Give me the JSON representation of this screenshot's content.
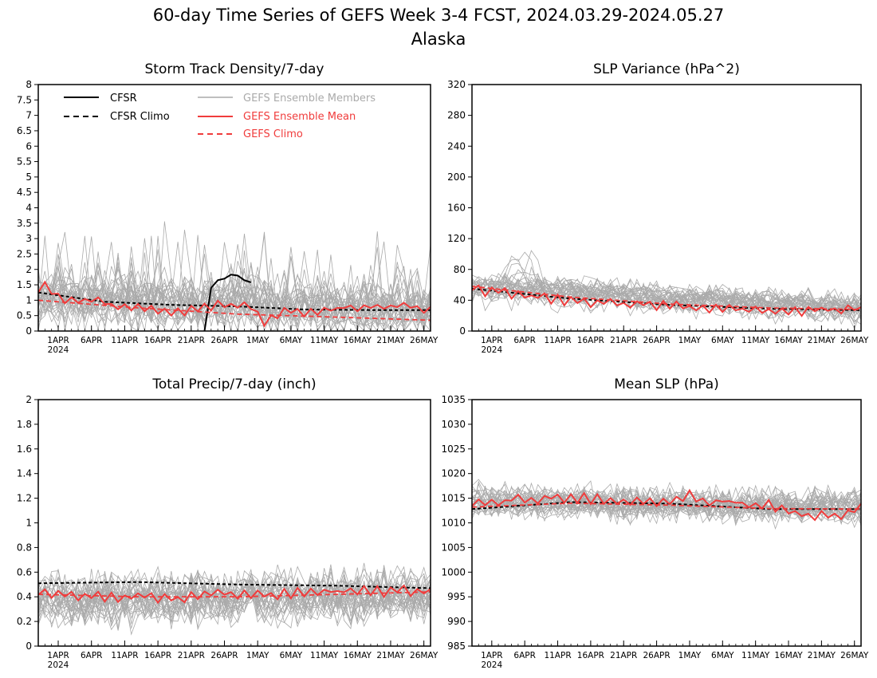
{
  "title": "60-day Time Series of GEFS Week 3-4 FCST, 2024.03.29-2024.05.27",
  "subtitle": "Alaska",
  "colors": {
    "cfsr": "#000000",
    "members": "#aaaaaa",
    "ens_mean": "#f03c3c",
    "gefs_climo": "#f03c3c"
  },
  "legend": {
    "cfsr": "CFSR",
    "cfsr_climo": "CFSR Climo",
    "members": "GEFS Ensemble Members",
    "ens_mean": "GEFS Ensemble Mean",
    "gefs_climo": "GEFS Climo"
  },
  "x_axis": {
    "start": "2024-03-29",
    "end": "2024-05-27",
    "tick_labels": [
      "1APR",
      "6APR",
      "11APR",
      "16APR",
      "21APR",
      "26APR",
      "1MAY",
      "6MAY",
      "11MAY",
      "16MAY",
      "21MAY",
      "26MAY"
    ],
    "year_label": "2024"
  },
  "chart_data": [
    {
      "type": "line",
      "title": "Storm Track Density/7-day",
      "ylim": [
        0,
        8
      ],
      "yticks": [
        0,
        0.5,
        1,
        1.5,
        2,
        2.5,
        3,
        3.5,
        4,
        4.5,
        5,
        5.5,
        6,
        6.5,
        7,
        7.5,
        8
      ],
      "ytick_labels": [
        "0",
        "0.5",
        "1",
        "1.5",
        "2",
        "2.5",
        "3",
        "3.5",
        "4",
        "4.5",
        "5",
        "5.5",
        "6",
        "6.5",
        "7",
        "7.5",
        "8"
      ],
      "members": {
        "count": 31,
        "mean_start": 1.1,
        "mean_end": 0.7,
        "spread": 0.9
      },
      "series": [
        {
          "name": "CFSR",
          "x": [
            "2024-04-23",
            "2024-04-24",
            "2024-04-25",
            "2024-04-26",
            "2024-04-27",
            "2024-04-28",
            "2024-04-29",
            "2024-04-30"
          ],
          "values": [
            0.0,
            1.4,
            1.65,
            1.7,
            1.83,
            1.8,
            1.65,
            1.58
          ]
        },
        {
          "name": "CFSR Climo",
          "x": [
            "2024-03-29",
            "2024-04-08",
            "2024-04-18",
            "2024-04-28",
            "2024-05-08",
            "2024-05-18",
            "2024-05-27"
          ],
          "values": [
            1.25,
            0.95,
            0.85,
            0.8,
            0.7,
            0.68,
            0.68
          ]
        },
        {
          "name": "GEFS Ensemble Mean",
          "x": [
            "2024-03-29",
            "2024-03-30",
            "2024-04-01",
            "2024-04-05",
            "2024-04-09",
            "2024-04-12",
            "2024-04-15",
            "2024-04-20",
            "2024-04-25",
            "2024-04-30",
            "2024-05-02",
            "2024-05-05",
            "2024-05-10",
            "2024-05-15",
            "2024-05-20",
            "2024-05-24",
            "2024-05-27"
          ],
          "values": [
            1.3,
            1.45,
            1.05,
            1.0,
            0.85,
            0.7,
            0.75,
            0.65,
            0.9,
            0.75,
            0.35,
            0.7,
            0.6,
            0.8,
            0.75,
            0.8,
            0.65
          ]
        },
        {
          "name": "GEFS Climo",
          "x": [
            "2024-03-29",
            "2024-04-13",
            "2024-04-28",
            "2024-05-13",
            "2024-05-27"
          ],
          "values": [
            1.0,
            0.75,
            0.55,
            0.45,
            0.35
          ]
        }
      ]
    },
    {
      "type": "line",
      "title": "SLP Variance (hPa^2)",
      "ylim": [
        0,
        320
      ],
      "yticks": [
        0,
        40,
        80,
        120,
        160,
        200,
        240,
        280,
        320
      ],
      "ytick_labels": [
        "0",
        "40",
        "80",
        "120",
        "160",
        "200",
        "240",
        "280",
        "320"
      ],
      "members": {
        "count": 31,
        "mean_start": 55,
        "mean_end": 27,
        "spread": 18
      },
      "series": [
        {
          "name": "CFSR Climo",
          "x": [
            "2024-03-29",
            "2024-04-13",
            "2024-04-28",
            "2024-05-13",
            "2024-05-27"
          ],
          "values": [
            55,
            42,
            34,
            29,
            27
          ]
        },
        {
          "name": "GEFS Ensemble Mean",
          "x": [
            "2024-03-29",
            "2024-04-05",
            "2024-04-12",
            "2024-04-20",
            "2024-04-28",
            "2024-05-05",
            "2024-05-12",
            "2024-05-20",
            "2024-05-27"
          ],
          "values": [
            55,
            46,
            39,
            36,
            33,
            30,
            28,
            26,
            28
          ]
        },
        {
          "name": "GEFS Climo",
          "x": [
            "2024-03-29",
            "2024-04-13",
            "2024-04-28",
            "2024-05-13",
            "2024-05-27"
          ],
          "values": [
            58,
            44,
            35,
            30,
            28
          ]
        }
      ]
    },
    {
      "type": "line",
      "title": "Total Precip/7-day (inch)",
      "ylim": [
        0,
        2
      ],
      "yticks": [
        0,
        0.2,
        0.4,
        0.6,
        0.8,
        1,
        1.2,
        1.4,
        1.6,
        1.8,
        2
      ],
      "ytick_labels": [
        "0",
        "0.2",
        "0.4",
        "0.6",
        "0.8",
        "1",
        "1.2",
        "1.4",
        "1.6",
        "1.8",
        "2"
      ],
      "members": {
        "count": 31,
        "mean_start": 0.42,
        "mean_end": 0.45,
        "spread": 0.22
      },
      "series": [
        {
          "name": "CFSR Climo",
          "x": [
            "2024-03-29",
            "2024-04-13",
            "2024-04-28",
            "2024-05-13",
            "2024-05-27"
          ],
          "values": [
            0.51,
            0.52,
            0.5,
            0.49,
            0.47
          ]
        },
        {
          "name": "GEFS Ensemble Mean",
          "x": [
            "2024-03-29",
            "2024-04-05",
            "2024-04-12",
            "2024-04-18",
            "2024-04-25",
            "2024-05-02",
            "2024-05-09",
            "2024-05-16",
            "2024-05-22",
            "2024-05-27"
          ],
          "values": [
            0.43,
            0.41,
            0.4,
            0.39,
            0.43,
            0.41,
            0.44,
            0.45,
            0.44,
            0.46
          ]
        },
        {
          "name": "GEFS Climo",
          "x": [
            "2024-03-29",
            "2024-04-13",
            "2024-04-28",
            "2024-05-13",
            "2024-05-27"
          ],
          "values": [
            0.42,
            0.4,
            0.4,
            0.42,
            0.44
          ]
        }
      ]
    },
    {
      "type": "line",
      "title": "Mean SLP (hPa)",
      "ylim": [
        985,
        1035
      ],
      "yticks": [
        985,
        990,
        995,
        1000,
        1005,
        1010,
        1015,
        1020,
        1025,
        1030,
        1035
      ],
      "ytick_labels": [
        "985",
        "990",
        "995",
        "1000",
        "1005",
        "1010",
        "1015",
        "1020",
        "1025",
        "1030",
        "1035"
      ],
      "members": {
        "count": 31,
        "mean_start": 1014,
        "mean_end": 1013,
        "spread": 3.5
      },
      "series": [
        {
          "name": "CFSR Climo",
          "x": [
            "2024-03-29",
            "2024-04-13",
            "2024-04-28",
            "2024-05-13",
            "2024-05-27"
          ],
          "values": [
            1012.8,
            1014.2,
            1013.9,
            1012.8,
            1012.8
          ]
        },
        {
          "name": "GEFS Ensemble Mean",
          "x": [
            "2024-03-29",
            "2024-04-03",
            "2024-04-08",
            "2024-04-13",
            "2024-04-18",
            "2024-04-23",
            "2024-04-28",
            "2024-05-01",
            "2024-05-03",
            "2024-05-08",
            "2024-05-13",
            "2024-05-18",
            "2024-05-21",
            "2024-05-24",
            "2024-05-27"
          ],
          "values": [
            1013.8,
            1014.5,
            1015.0,
            1015.2,
            1014.6,
            1014.5,
            1013.8,
            1016.0,
            1014.5,
            1014.2,
            1013.5,
            1012.0,
            1011.3,
            1011.0,
            1013.0
          ]
        },
        {
          "name": "GEFS Climo",
          "x": [
            "2024-03-29",
            "2024-04-13",
            "2024-04-28",
            "2024-05-13",
            "2024-05-27"
          ],
          "values": [
            1013.2,
            1014.0,
            1013.6,
            1012.9,
            1012.8
          ]
        }
      ]
    }
  ]
}
